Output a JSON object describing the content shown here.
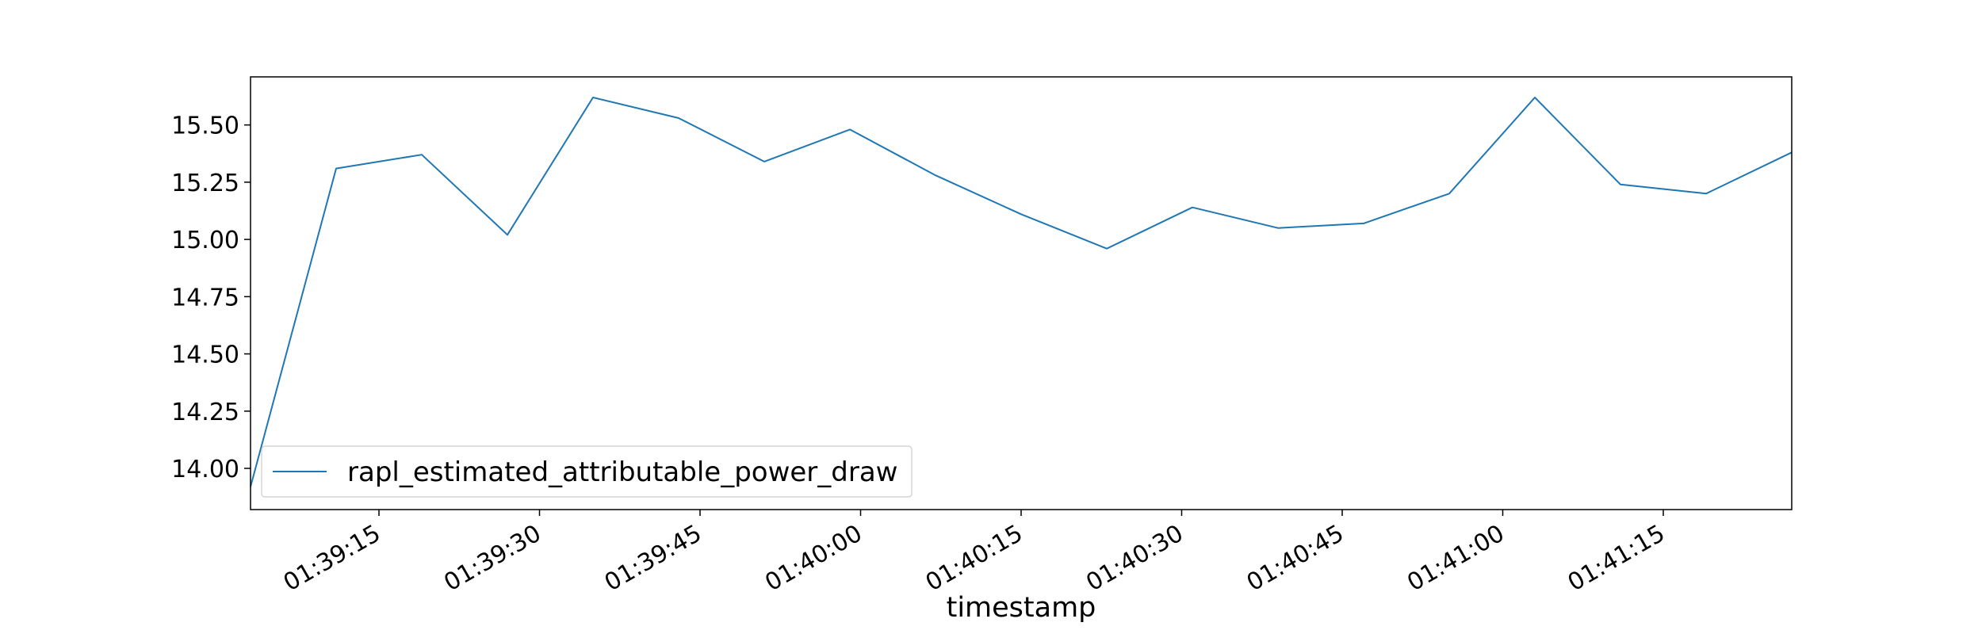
{
  "chart_data": {
    "type": "line",
    "title": "",
    "xlabel": "timestamp",
    "ylabel": "",
    "x": [
      "01:39:03",
      "01:39:11",
      "01:39:19",
      "01:39:27",
      "01:39:35",
      "01:39:43",
      "01:39:51",
      "01:39:59",
      "01:40:07",
      "01:40:15",
      "01:40:23",
      "01:40:31",
      "01:40:39",
      "01:40:47",
      "01:40:55",
      "01:41:03",
      "01:41:11",
      "01:41:19",
      "01:41:27"
    ],
    "series": [
      {
        "name": "rapl_estimated_attributable_power_draw",
        "color": "#1f77b4",
        "values": [
          13.92,
          15.31,
          15.37,
          15.02,
          15.62,
          15.53,
          15.34,
          15.48,
          15.28,
          15.11,
          14.96,
          15.14,
          15.05,
          15.07,
          15.2,
          15.62,
          15.24,
          15.2,
          15.38
        ]
      }
    ],
    "xlim": [
      "01:39:03",
      "01:41:27"
    ],
    "ylim": [
      13.82,
      15.71
    ],
    "x_ticks": [
      "01:39:15",
      "01:39:30",
      "01:39:45",
      "01:40:00",
      "01:40:15",
      "01:40:30",
      "01:40:45",
      "01:41:00",
      "01:41:15"
    ],
    "y_ticks": [
      "14.00",
      "14.25",
      "14.50",
      "14.75",
      "15.00",
      "15.25",
      "15.50"
    ],
    "grid": false,
    "legend_position": "lower-left"
  }
}
